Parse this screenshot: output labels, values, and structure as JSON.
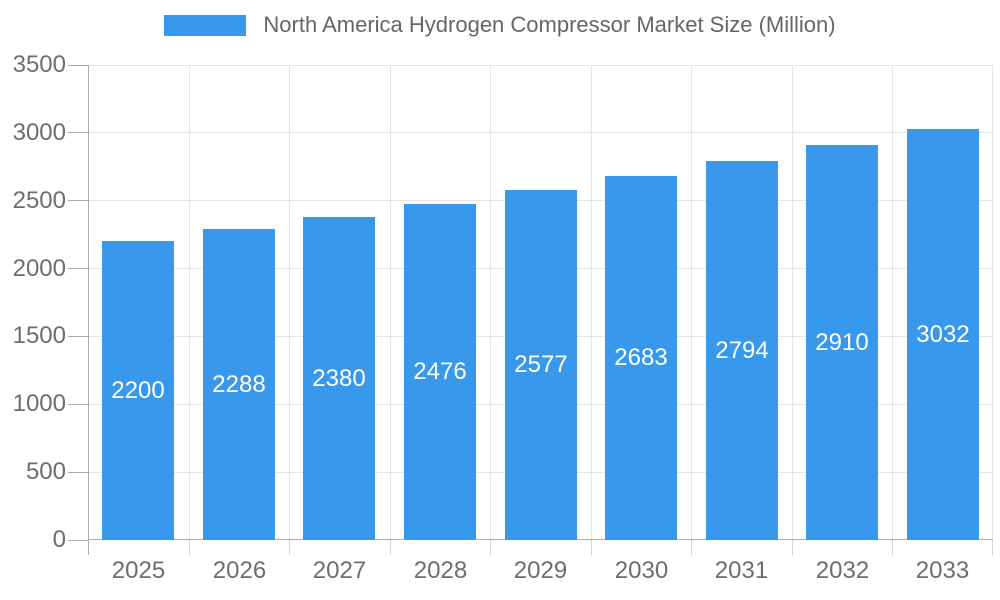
{
  "legend": {
    "swatch_color": "#3899EC"
  },
  "chart_data": {
    "type": "bar",
    "title": "North America Hydrogen Compressor Market Size (Million)",
    "xlabel": "",
    "ylabel": "",
    "categories": [
      "2025",
      "2026",
      "2027",
      "2028",
      "2029",
      "2030",
      "2031",
      "2032",
      "2033"
    ],
    "values": [
      2200,
      2288,
      2380,
      2476,
      2577,
      2683,
      2794,
      2910,
      3032
    ],
    "ylim": [
      0,
      3500
    ],
    "yticks": [
      0,
      500,
      1000,
      1500,
      2000,
      2500,
      3000,
      3500
    ],
    "grid": true,
    "legend_position": "top",
    "bar_color": "#3899EC",
    "bar_label_color": "#FFFFFF",
    "axis_label_color": "#6E6E6E",
    "gridline_color": "#E5E5E5",
    "axis_line_color": "#AAAAAA"
  }
}
